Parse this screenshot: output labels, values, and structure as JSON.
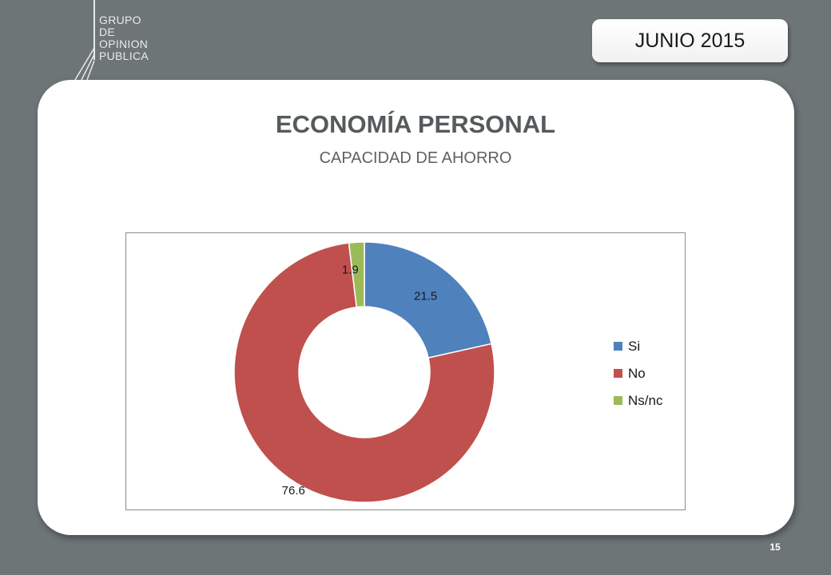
{
  "header": {
    "logo_lines": [
      "GRUPO",
      "DE",
      "OPINION",
      "PUBLICA"
    ],
    "date": "JUNIO 2015"
  },
  "slide": {
    "title": "ECONOMÍA PERSONAL",
    "subtitle": "CAPACIDAD DE AHORRO",
    "page_number": "15"
  },
  "chart_data": {
    "type": "pie",
    "donut": true,
    "title": "",
    "slices": [
      {
        "label": "Si",
        "value": 21.5,
        "color": "#4f81bd"
      },
      {
        "label": "No",
        "value": 76.6,
        "color": "#c0504d"
      },
      {
        "label": "Ns/nc",
        "value": 1.9,
        "color": "#9bbb59"
      }
    ],
    "legend_position": "right"
  }
}
